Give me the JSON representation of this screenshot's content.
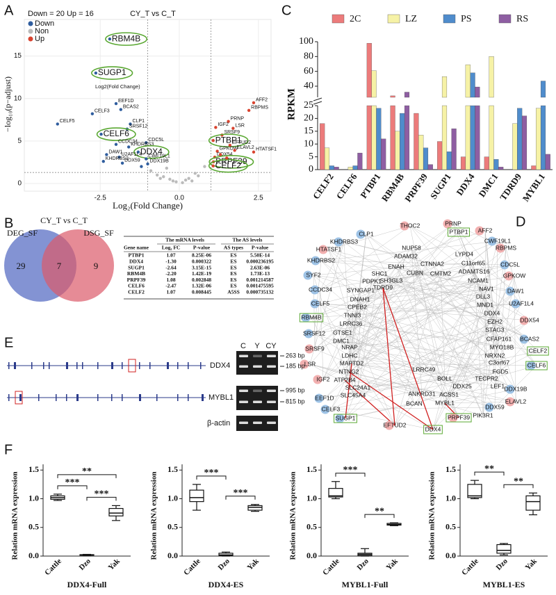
{
  "panel_labels": [
    "A",
    "B",
    "C",
    "D",
    "E",
    "F"
  ],
  "chart_data": [
    {
      "type": "scatter",
      "subtitle": "Down = 20 Up = 16",
      "title": "CY_T vs C_T",
      "xlabel": "Log₂(Fold Change)",
      "ylabel": "−log₁₀(p−adjust)",
      "annotation": "Log2(Fold Change)",
      "xlim": [
        -4.9,
        2.9
      ],
      "ylim": [
        -0.9,
        19.3
      ],
      "xticks": [
        -2.5,
        {
          "value": 0,
          "label": "0.0"
        },
        2.5
      ],
      "yticks": [
        0,
        5,
        10,
        15
      ],
      "vlines": [
        -1,
        1
      ],
      "hline": 1.3,
      "grid": true,
      "legend": "top-left",
      "series": [
        {
          "name": "Down",
          "color": "#2f5d9e",
          "labels": [
            "RBM4B",
            "SUGP1",
            "EEF1D",
            "CELF3",
            "BCAS2",
            "CELF5",
            "CLP1",
            "SRSF12",
            "CELF6",
            "CCDC34",
            "CDC5L",
            "KHDRBS3",
            "DDX4",
            "DAW1",
            "U2AF1L4",
            "CWF19L1",
            "KHDRBS2",
            "DDX59",
            "DDX19B",
            null
          ],
          "x": [
            -2.2,
            -2.64,
            -2.0,
            -2.75,
            -1.85,
            -3.85,
            -1.55,
            -1.65,
            -2.47,
            -2.0,
            -1.05,
            -1.6,
            -1.3,
            -2.3,
            -1.9,
            -1.05,
            -2.4,
            -1.8,
            -1.0,
            -1.2
          ],
          "y": [
            17.0,
            13.0,
            9.4,
            8.2,
            8.7,
            7.0,
            7.0,
            6.4,
            5.8,
            4.6,
            4.8,
            4.3,
            3.7,
            3.4,
            3.1,
            2.9,
            2.6,
            2.4,
            2.3,
            2.0
          ],
          "circled": [
            true,
            true,
            false,
            false,
            false,
            false,
            false,
            false,
            true,
            false,
            false,
            false,
            true,
            false,
            false,
            false,
            false,
            false,
            false,
            false
          ]
        },
        {
          "name": "Non",
          "color": "#bbbbbb",
          "x": [
            -0.9,
            -0.7,
            -0.5,
            -0.4,
            -0.3,
            -0.2,
            -0.1,
            0.1,
            0.2,
            0.3,
            0.5,
            0.6,
            0.8,
            -0.6,
            0.4
          ],
          "y": [
            1.5,
            1.0,
            0.8,
            1.8,
            0.5,
            0.3,
            0.2,
            0.1,
            0.4,
            0.6,
            1.2,
            0.9,
            2.0,
            0.6,
            0.3
          ]
        },
        {
          "name": "Up",
          "color": "#d9432f",
          "labels": [
            "AFF2",
            "RBPMS",
            "PRNP",
            "LSR",
            "IGF2",
            "SRSF9",
            "PTBP1",
            "EFTUD2",
            "GPKOW",
            "ELAVL2",
            "HTATSF1",
            "DDX54",
            "PRPF39",
            "CELF2",
            null,
            null
          ],
          "x": [
            2.35,
            2.2,
            1.55,
            1.7,
            1.15,
            1.35,
            1.07,
            1.6,
            1.2,
            1.75,
            2.35,
            1.12,
            1.08,
            1.07,
            1.3,
            1.5
          ],
          "y": [
            9.5,
            8.6,
            7.3,
            6.5,
            6.6,
            5.7,
            5.06,
            4.5,
            3.8,
            3.9,
            3.7,
            3.1,
            2.55,
            2.07,
            3.4,
            3.0
          ],
          "circled": [
            false,
            false,
            false,
            false,
            false,
            false,
            true,
            false,
            false,
            false,
            false,
            false,
            true,
            true,
            false,
            false
          ]
        }
      ]
    },
    {
      "type": "bar",
      "ylabel": "RPKM",
      "categories": [
        "CELF2",
        "CELF6",
        "PTBP1",
        "RBM4B",
        "PRPF39",
        "SUGP1",
        "DDX4",
        "DMC1",
        "TDRD9",
        "MYBL1"
      ],
      "ylim": [
        0,
        100
      ],
      "axis_break": 25,
      "yticks": [
        0,
        5,
        10,
        15,
        20,
        25,
        40,
        60,
        80,
        100
      ],
      "legend": "top",
      "series": [
        {
          "name": "2C",
          "color": "#ec7b7b",
          "values": [
            18,
            0,
            98,
            27,
            22,
            11,
            5,
            5,
            0,
            1.5
          ]
        },
        {
          "name": "LZ",
          "color": "#f6f2a6",
          "values": [
            8.5,
            1,
            61,
            15,
            13.5,
            53,
            69,
            80,
            18,
            24
          ]
        },
        {
          "name": "PS",
          "color": "#4f8ccc",
          "values": [
            1.5,
            1.5,
            24,
            22,
            8.5,
            7,
            58,
            4,
            24,
            47
          ]
        },
        {
          "name": "RS",
          "color": "#8e5ea2",
          "values": [
            1,
            6.5,
            12,
            32,
            2,
            16,
            39,
            1,
            21,
            6
          ]
        }
      ]
    },
    {
      "type": "box",
      "title": "DDX4-Full",
      "ylabel": "Relation mRNA expression",
      "categories": [
        "Cattle",
        "Dzo",
        "Yak"
      ],
      "ylim": [
        0,
        1.6
      ],
      "yticks": [
        {
          "value": 0,
          "label": "0.0"
        },
        0.5,
        {
          "value": 1,
          "label": "1.0"
        },
        1.5
      ],
      "boxes": [
        {
          "min": 0.97,
          "q1": 0.99,
          "median": 1.02,
          "q3": 1.05,
          "max": 1.08
        },
        {
          "min": 0.01,
          "q1": 0.015,
          "median": 0.02,
          "q3": 0.025,
          "max": 0.03
        },
        {
          "min": 0.62,
          "q1": 0.7,
          "median": 0.75,
          "q3": 0.83,
          "max": 0.88
        }
      ],
      "significance": [
        {
          "groups": [
            0,
            1
          ],
          "label": "***"
        },
        {
          "groups": [
            1,
            2
          ],
          "label": "***"
        },
        {
          "groups": [
            0,
            2
          ],
          "label": "**"
        }
      ]
    },
    {
      "type": "box",
      "title": "DDX4-ES",
      "ylabel": "Relation mRNA expression",
      "categories": [
        "Cattle",
        "Dzo",
        "Yak"
      ],
      "ylim": [
        0,
        1.6
      ],
      "yticks": [
        {
          "value": 0,
          "label": "0.0"
        },
        0.5,
        {
          "value": 1,
          "label": "1.0"
        },
        1.5
      ],
      "boxes": [
        {
          "min": 0.8,
          "q1": 0.95,
          "median": 1.02,
          "q3": 1.15,
          "max": 1.25
        },
        {
          "min": 0.0,
          "q1": 0.01,
          "median": 0.02,
          "q3": 0.05,
          "max": 0.07
        },
        {
          "min": 0.78,
          "q1": 0.8,
          "median": 0.85,
          "q3": 0.88,
          "max": 0.9
        }
      ],
      "significance": [
        {
          "groups": [
            0,
            1
          ],
          "label": "***"
        },
        {
          "groups": [
            1,
            2
          ],
          "label": "***"
        }
      ]
    },
    {
      "type": "box",
      "title": "MYBL1-Full",
      "ylabel": "Relation mRNA expression",
      "categories": [
        "Cattle",
        "Dzo",
        "Yak"
      ],
      "ylim": [
        0,
        1.6
      ],
      "yticks": [
        {
          "value": 0,
          "label": "0.0"
        },
        0.5,
        {
          "value": 1,
          "label": "1.0"
        },
        1.5
      ],
      "boxes": [
        {
          "min": 1.0,
          "q1": 1.03,
          "median": 1.05,
          "q3": 1.18,
          "max": 1.3
        },
        {
          "min": 0.0,
          "q1": 0.01,
          "median": 0.03,
          "q3": 0.05,
          "max": 0.13
        },
        {
          "min": 0.53,
          "q1": 0.54,
          "median": 0.55,
          "q3": 0.57,
          "max": 0.58
        }
      ],
      "significance": [
        {
          "groups": [
            0,
            1
          ],
          "label": "***"
        },
        {
          "groups": [
            1,
            2
          ],
          "label": "**"
        }
      ]
    },
    {
      "type": "box",
      "title": "MYBL1-ES",
      "ylabel": "Relation mRNA expression",
      "categories": [
        "Cattle",
        "Dzo",
        "Yak"
      ],
      "ylim": [
        0,
        1.6
      ],
      "yticks": [
        {
          "value": 0,
          "label": "0.0"
        },
        0.5,
        {
          "value": 1,
          "label": "1.0"
        },
        1.5
      ],
      "boxes": [
        {
          "min": 1.0,
          "q1": 1.02,
          "median": 1.05,
          "q3": 1.25,
          "max": 1.32
        },
        {
          "min": 0.02,
          "q1": 0.05,
          "median": 0.1,
          "q3": 0.2,
          "max": 0.22
        },
        {
          "min": 0.72,
          "q1": 0.8,
          "median": 0.95,
          "q3": 1.05,
          "max": 1.1
        }
      ],
      "significance": [
        {
          "groups": [
            0,
            1
          ],
          "label": "**"
        },
        {
          "groups": [
            1,
            2
          ],
          "label": "**"
        }
      ]
    }
  ],
  "venn": {
    "title": "CY_T vs C_T",
    "sets": [
      "DEG_SF",
      "DSG_SF"
    ],
    "counts": [
      29,
      7,
      9
    ]
  },
  "table": {
    "group_headers": [
      "The mRNA levels",
      "The AS levels"
    ],
    "columns": [
      "Gene name",
      "Log₂ FC",
      "P-value",
      "AS types",
      "P-value"
    ],
    "rows": [
      [
        "PTBP1",
        "1.07",
        "8.25E-06",
        "ES",
        "5.50E-14"
      ],
      [
        "DDX4",
        "-1.30",
        "0.000322",
        "ES",
        "0.000236195"
      ],
      [
        "SUGP1",
        "-2.64",
        "3.15E-15",
        "ES",
        "2.63E-06"
      ],
      [
        "RBM4B",
        "-2.20",
        "1.42E-19",
        "ES",
        "1.73E-13"
      ],
      [
        "PRPF39",
        "1.08",
        "0.002848",
        "ES",
        "0.001214587"
      ],
      [
        "CELF6",
        "-2.47",
        "1.32E-06",
        "ES",
        "0.001475595"
      ],
      [
        "CELF2",
        "1.07",
        "0.008445",
        "A5SS",
        "0.000735132"
      ]
    ]
  },
  "network": {
    "nodes": [
      {
        "label": "THOC2",
        "group": "up"
      },
      {
        "label": "PRNP",
        "group": "up"
      },
      {
        "label": "PTBP1",
        "group": "none",
        "boxed": true
      },
      {
        "label": "AFF2",
        "group": "up"
      },
      {
        "label": "CLP1",
        "group": "down"
      },
      {
        "label": "CWF19L1",
        "group": "down"
      },
      {
        "label": "KHDRBS3",
        "group": "down"
      },
      {
        "label": "HTATSF1",
        "group": "up"
      },
      {
        "label": "NUP58",
        "group": "none"
      },
      {
        "label": "RBPMS",
        "group": "up"
      },
      {
        "label": "ADAM32",
        "group": "none"
      },
      {
        "label": "LYPD4",
        "group": "none"
      },
      {
        "label": "KHDRBS2",
        "group": "down"
      },
      {
        "label": "CTNNA2",
        "group": "none"
      },
      {
        "label": "ENAH",
        "group": "none"
      },
      {
        "label": "C11orf65",
        "group": "none"
      },
      {
        "label": "CDC5L",
        "group": "down"
      },
      {
        "label": "CUBN",
        "group": "none"
      },
      {
        "label": "SHC1",
        "group": "none"
      },
      {
        "label": "CMTM2",
        "group": "none"
      },
      {
        "label": "ADAMTS16",
        "group": "none"
      },
      {
        "label": "SYF2",
        "group": "down"
      },
      {
        "label": "SH3GL3",
        "group": "none"
      },
      {
        "label": "NCAM1",
        "group": "none"
      },
      {
        "label": "GPKOW",
        "group": "up"
      },
      {
        "label": "PDPK1",
        "group": "none"
      },
      {
        "label": "TDRD9",
        "group": "none"
      },
      {
        "label": "NAV1",
        "group": "none"
      },
      {
        "label": "SYNGAP1",
        "group": "none"
      },
      {
        "label": "CCDC34",
        "group": "down"
      },
      {
        "label": "DAW1",
        "group": "down"
      },
      {
        "label": "DNAH1",
        "group": "none"
      },
      {
        "label": "DLL3",
        "group": "none"
      },
      {
        "label": "CELF5",
        "group": "down"
      },
      {
        "label": "CPEB2",
        "group": "none"
      },
      {
        "label": "MND1",
        "group": "none"
      },
      {
        "label": "U2AF1L4",
        "group": "down"
      },
      {
        "label": "DDX4",
        "group": "none"
      },
      {
        "label": "TNNI3",
        "group": "none"
      },
      {
        "label": "EZH2",
        "group": "none"
      },
      {
        "label": "DDX54",
        "group": "up"
      },
      {
        "label": "RBM4B",
        "group": "down",
        "boxed": true
      },
      {
        "label": "LRRC36",
        "group": "none"
      },
      {
        "label": "STAG3",
        "group": "none"
      },
      {
        "label": "GTSE1",
        "group": "none"
      },
      {
        "label": "CFAP161",
        "group": "none"
      },
      {
        "label": "BCAS2",
        "group": "down"
      },
      {
        "label": "SRSF12",
        "group": "down"
      },
      {
        "label": "DMC1",
        "group": "none"
      },
      {
        "label": "MYO18B",
        "group": "none"
      },
      {
        "label": "SRSF9",
        "group": "up"
      },
      {
        "label": "NRAP",
        "group": "none"
      },
      {
        "label": "NRXN2",
        "group": "none"
      },
      {
        "label": "CELF2",
        "group": "none",
        "boxed": true
      },
      {
        "label": "LDHC",
        "group": "none"
      },
      {
        "label": "C3orf67",
        "group": "none"
      },
      {
        "label": "CELF6",
        "group": "down",
        "boxed": true
      },
      {
        "label": "MAPTD2",
        "group": "none"
      },
      {
        "label": "FGD5",
        "group": "none"
      },
      {
        "label": "LSR",
        "group": "up"
      },
      {
        "label": "NTNG2",
        "group": "none"
      },
      {
        "label": "LRRC49",
        "group": "none"
      },
      {
        "label": "TECPR2",
        "group": "none"
      },
      {
        "label": "BOLL",
        "group": "none"
      },
      {
        "label": "LEF1",
        "group": "none"
      },
      {
        "label": "IGF2",
        "group": "up"
      },
      {
        "label": "ATP2B4",
        "group": "none"
      },
      {
        "label": "SLC24A1",
        "group": "none"
      },
      {
        "label": "DDX25",
        "group": "none"
      },
      {
        "label": "DDX19B",
        "group": "down"
      },
      {
        "label": "SLC45A4",
        "group": "none"
      },
      {
        "label": "ANKRD31",
        "group": "none"
      },
      {
        "label": "ACSS1",
        "group": "none"
      },
      {
        "label": "ELAVL2",
        "group": "up"
      },
      {
        "label": "EEF1D",
        "group": "down"
      },
      {
        "label": "BCAN",
        "group": "none"
      },
      {
        "label": "MYBL1",
        "group": "none"
      },
      {
        "label": "DDX59",
        "group": "down"
      },
      {
        "label": "CELF3",
        "group": "down"
      },
      {
        "label": "SUGP1",
        "group": "down",
        "boxed": true
      },
      {
        "label": "PIK3R1",
        "group": "none"
      },
      {
        "label": "PRPF39",
        "group": "up",
        "boxed": true
      },
      {
        "label": "EFTUD2",
        "group": "up"
      },
      {
        "label": "DDX4",
        "group": "none",
        "boxed": true
      }
    ]
  },
  "gel": {
    "genes": [
      "DDX4",
      "MYBL1"
    ],
    "lanes": [
      "C",
      "Y",
      "CY"
    ],
    "sizes": [
      "263 bp",
      "185 bp",
      "995 bp",
      "815 bp"
    ],
    "control": "β-actin"
  }
}
